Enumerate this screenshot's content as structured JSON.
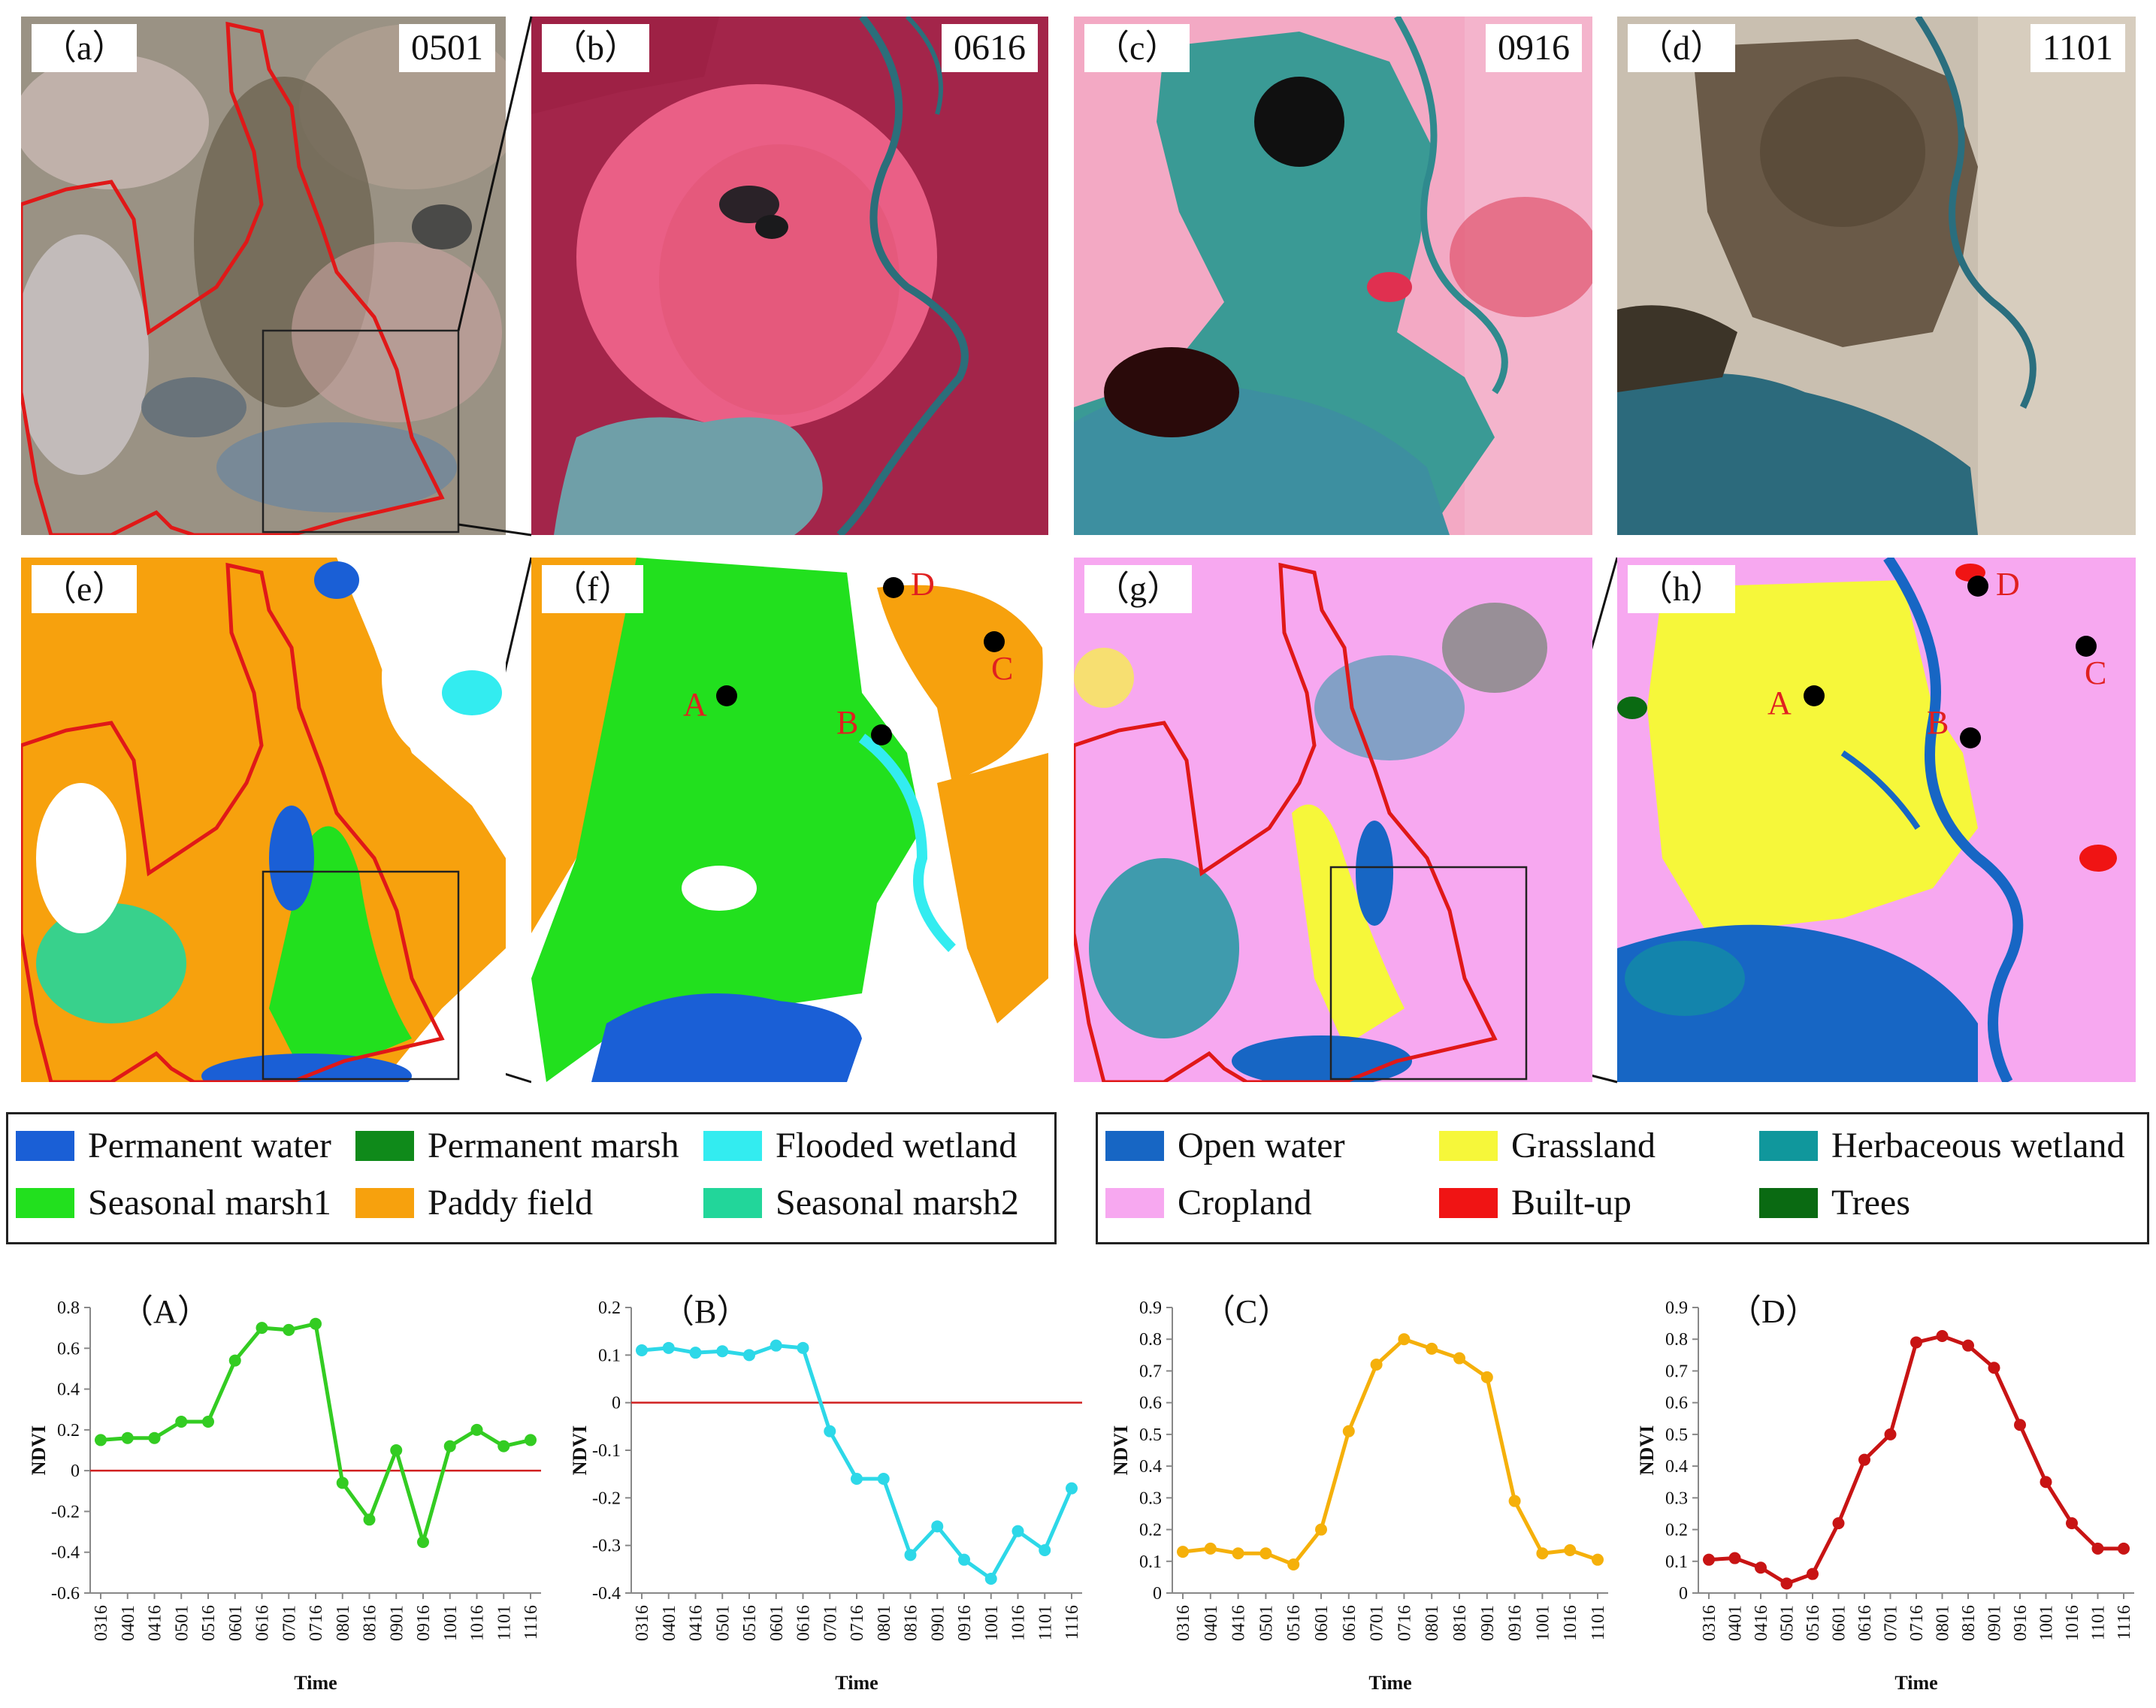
{
  "panels": {
    "a": {
      "label": "（a）",
      "date": "0501"
    },
    "b": {
      "label": "（b）",
      "date": "0616"
    },
    "c": {
      "label": "（c）",
      "date": "0916"
    },
    "d": {
      "label": "（d）",
      "date": "1101"
    },
    "e": {
      "label": "（e）"
    },
    "f": {
      "label": "（f）"
    },
    "g": {
      "label": "（g）"
    },
    "h": {
      "label": "（h）"
    }
  },
  "points": {
    "A": "A",
    "B": "B",
    "C": "C",
    "D": "D"
  },
  "legend_left": {
    "items": [
      {
        "label": "Permanent water",
        "color": "#1a5fd6"
      },
      {
        "label": "Permanent marsh",
        "color": "#0f8a1a"
      },
      {
        "label": "Flooded wetland",
        "color": "#33ecf0"
      },
      {
        "label": "Seasonal marsh1",
        "color": "#22e01e"
      },
      {
        "label": "Paddy field",
        "color": "#f7a10d"
      },
      {
        "label": "Seasonal marsh2",
        "color": "#22d69a"
      }
    ]
  },
  "legend_right": {
    "items": [
      {
        "label": "Open water",
        "color": "#1766c4"
      },
      {
        "label": "Grassland",
        "color": "#f6f73a"
      },
      {
        "label": "Herbaceous wetland",
        "color": "#10979c"
      },
      {
        "label": "Cropland",
        "color": "#f7a8f0"
      },
      {
        "label": "Built-up",
        "color": "#f01414"
      },
      {
        "label": "Trees",
        "color": "#0a6a12"
      }
    ]
  },
  "chart_data": [
    {
      "type": "line",
      "title": "（A）",
      "xlabel": "Time",
      "ylabel": "NDVI",
      "color": "#33cc22",
      "zero_line": true,
      "ylim": [
        -0.6,
        0.8
      ],
      "yticks": [
        -0.6,
        -0.4,
        -0.2,
        0,
        0.2,
        0.4,
        0.6,
        0.8
      ],
      "categories": [
        "0316",
        "0401",
        "0416",
        "0501",
        "0516",
        "0601",
        "0616",
        "0701",
        "0716",
        "0801",
        "0816",
        "0901",
        "0916",
        "1001",
        "1016",
        "1101",
        "1116"
      ],
      "values": [
        0.15,
        0.16,
        0.16,
        0.24,
        0.24,
        0.54,
        0.7,
        0.69,
        0.72,
        -0.06,
        -0.24,
        0.1,
        -0.35,
        0.12,
        0.2,
        0.12,
        0.15
      ]
    },
    {
      "type": "line",
      "title": "（B）",
      "xlabel": "Time",
      "ylabel": "NDVI",
      "color": "#2dd8e8",
      "zero_line": true,
      "ylim": [
        -0.4,
        0.2
      ],
      "yticks": [
        -0.4,
        -0.3,
        -0.2,
        -0.1,
        0,
        0.1,
        0.2
      ],
      "categories": [
        "0316",
        "0401",
        "0416",
        "0501",
        "0516",
        "0601",
        "0616",
        "0701",
        "0716",
        "0801",
        "0816",
        "0901",
        "0916",
        "1001",
        "1016",
        "1101",
        "1116"
      ],
      "values": [
        0.11,
        0.115,
        0.105,
        0.108,
        0.1,
        0.12,
        0.115,
        -0.06,
        -0.16,
        -0.16,
        -0.32,
        -0.26,
        -0.33,
        -0.37,
        -0.27,
        -0.31,
        -0.18
      ]
    },
    {
      "type": "line",
      "title": "（C）",
      "xlabel": "Time",
      "ylabel": "NDVI",
      "color": "#f5b00a",
      "zero_line": false,
      "ylim": [
        0,
        0.9
      ],
      "yticks": [
        0,
        0.1,
        0.2,
        0.3,
        0.4,
        0.5,
        0.6,
        0.7,
        0.8,
        0.9
      ],
      "categories": [
        "0316",
        "0401",
        "0416",
        "0501",
        "0516",
        "0601",
        "0616",
        "0701",
        "0716",
        "0801",
        "0816",
        "0901",
        "0916",
        "1001",
        "1016",
        "1101"
      ],
      "values": [
        0.13,
        0.14,
        0.125,
        0.125,
        0.09,
        0.2,
        0.51,
        0.72,
        0.8,
        0.77,
        0.74,
        0.68,
        0.29,
        0.125,
        0.135,
        0.105
      ]
    },
    {
      "type": "line",
      "title": "（D）",
      "xlabel": "Time",
      "ylabel": "NDVI",
      "color": "#c81414",
      "zero_line": false,
      "ylim": [
        0,
        0.9
      ],
      "yticks": [
        0,
        0.1,
        0.2,
        0.3,
        0.4,
        0.5,
        0.6,
        0.7,
        0.8,
        0.9
      ],
      "categories": [
        "0316",
        "0401",
        "0416",
        "0501",
        "0516",
        "0601",
        "0616",
        "0701",
        "0716",
        "0801",
        "0816",
        "0901",
        "0916",
        "1001",
        "1016",
        "1101",
        "1116"
      ],
      "values": [
        0.105,
        0.11,
        0.08,
        0.03,
        0.06,
        0.22,
        0.42,
        0.5,
        0.79,
        0.81,
        0.78,
        0.71,
        0.53,
        0.35,
        0.22,
        0.14,
        0.14
      ]
    }
  ]
}
